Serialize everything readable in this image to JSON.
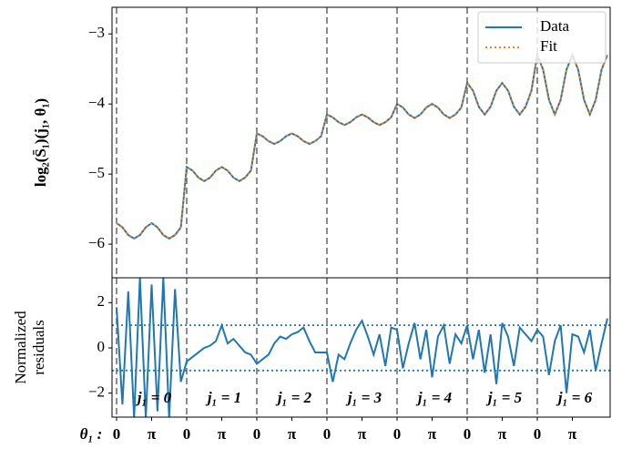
{
  "chart_data": [
    {
      "type": "line",
      "ylabel": "log₂(S̄₁)(j₁, θ₁)",
      "x": [
        0,
        1,
        2,
        3,
        4,
        5,
        6,
        7,
        8,
        9,
        10,
        11,
        12,
        13,
        14,
        15,
        16,
        17,
        18,
        19,
        20,
        21,
        22,
        23,
        24,
        25,
        26,
        27,
        28,
        29,
        30,
        31,
        32,
        33,
        34,
        35,
        36,
        37,
        38,
        39,
        40,
        41,
        42,
        43,
        44,
        45,
        46,
        47,
        48,
        49,
        50,
        51,
        52,
        53,
        54,
        55,
        56,
        57,
        58,
        59,
        60,
        61,
        62,
        63,
        64,
        65,
        66,
        67,
        68,
        69,
        70,
        71,
        72,
        73,
        74,
        75,
        76,
        77,
        78,
        79,
        80,
        81,
        82,
        83,
        84
      ],
      "series": [
        {
          "name": "Data",
          "color": "#1f77b4",
          "style": "solid",
          "values": [
            -5.7,
            -5.76,
            -5.87,
            -5.92,
            -5.87,
            -5.76,
            -5.7,
            -5.76,
            -5.87,
            -5.92,
            -5.87,
            -5.76,
            -4.9,
            -4.95,
            -5.05,
            -5.1,
            -5.05,
            -4.95,
            -4.9,
            -4.95,
            -5.05,
            -5.1,
            -5.05,
            -4.95,
            -4.42,
            -4.46,
            -4.53,
            -4.57,
            -4.53,
            -4.46,
            -4.42,
            -4.46,
            -4.53,
            -4.57,
            -4.53,
            -4.46,
            -4.15,
            -4.19,
            -4.26,
            -4.3,
            -4.26,
            -4.19,
            -4.15,
            -4.19,
            -4.26,
            -4.3,
            -4.26,
            -4.19,
            -4.0,
            -4.05,
            -4.15,
            -4.2,
            -4.15,
            -4.05,
            -4.0,
            -4.05,
            -4.15,
            -4.2,
            -4.15,
            -4.05,
            -3.7,
            -3.81,
            -4.04,
            -4.15,
            -4.04,
            -3.81,
            -3.7,
            -3.81,
            -4.04,
            -4.15,
            -4.04,
            -3.81,
            -3.3,
            -3.51,
            -3.94,
            -4.15,
            -3.94,
            -3.51,
            -3.3,
            -3.51,
            -3.94,
            -4.15,
            -3.94,
            -3.51,
            -3.3
          ]
        },
        {
          "name": "Fit",
          "color": "#ff7f0e",
          "style": "dotted",
          "values": [
            -5.7,
            -5.76,
            -5.87,
            -5.92,
            -5.87,
            -5.76,
            -5.7,
            -5.76,
            -5.87,
            -5.92,
            -5.87,
            -5.76,
            -4.9,
            -4.95,
            -5.05,
            -5.1,
            -5.05,
            -4.95,
            -4.9,
            -4.95,
            -5.05,
            -5.1,
            -5.05,
            -4.95,
            -4.42,
            -4.46,
            -4.53,
            -4.57,
            -4.53,
            -4.46,
            -4.42,
            -4.46,
            -4.53,
            -4.57,
            -4.53,
            -4.46,
            -4.15,
            -4.19,
            -4.26,
            -4.3,
            -4.26,
            -4.19,
            -4.15,
            -4.19,
            -4.26,
            -4.3,
            -4.26,
            -4.19,
            -4.0,
            -4.05,
            -4.15,
            -4.2,
            -4.15,
            -4.05,
            -4.0,
            -4.05,
            -4.15,
            -4.2,
            -4.15,
            -4.05,
            -3.7,
            -3.81,
            -4.04,
            -4.15,
            -4.04,
            -3.81,
            -3.7,
            -3.81,
            -4.04,
            -4.15,
            -4.04,
            -3.81,
            -3.3,
            -3.51,
            -3.94,
            -4.15,
            -3.94,
            -3.51,
            -3.3,
            -3.51,
            -3.94,
            -4.15,
            -3.94,
            -3.51,
            -3.3
          ]
        }
      ],
      "xlim": [
        -0.78,
        84.47
      ],
      "ylim": [
        -6.48,
        -2.62
      ],
      "yticks": [
        {
          "value": -6,
          "label": "−6"
        },
        {
          "value": -5,
          "label": "−5"
        },
        {
          "value": -4,
          "label": "−4"
        },
        {
          "value": -3,
          "label": "−3"
        }
      ],
      "vlines": [
        0,
        12,
        24,
        36,
        48,
        60,
        72
      ],
      "legend": "upper right"
    },
    {
      "type": "line",
      "ylabel": [
        "Normalized",
        "residuals"
      ],
      "xlabel": "θ₁ :",
      "x": [
        0,
        1,
        2,
        3,
        4,
        5,
        6,
        7,
        8,
        9,
        10,
        11,
        12,
        13,
        14,
        15,
        16,
        17,
        18,
        19,
        20,
        21,
        22,
        23,
        24,
        25,
        26,
        27,
        28,
        29,
        30,
        31,
        32,
        33,
        34,
        35,
        36,
        37,
        38,
        39,
        40,
        41,
        42,
        43,
        44,
        45,
        46,
        47,
        48,
        49,
        50,
        51,
        52,
        53,
        54,
        55,
        56,
        57,
        58,
        59,
        60,
        61,
        62,
        63,
        64,
        65,
        66,
        67,
        68,
        69,
        70,
        71,
        72,
        73,
        74,
        75,
        76,
        77,
        78,
        79,
        80,
        81,
        82,
        83,
        84
      ],
      "series": [
        {
          "color": "#1f77b4",
          "values": [
            1.8,
            -2.5,
            2.5,
            -3.1,
            3.1,
            -3.1,
            2.8,
            -2.8,
            3.1,
            -3.1,
            2.6,
            -1.5,
            -0.6,
            -0.4,
            -0.2,
            0,
            0.1,
            0.3,
            1.0,
            0.2,
            0.4,
            0.1,
            -0.2,
            -0.3,
            -0.7,
            -0.5,
            -0.3,
            0.2,
            0.5,
            0.4,
            0.6,
            0.7,
            0.9,
            0.3,
            -0.2,
            -0.2,
            -0.2,
            -1.5,
            -0.3,
            -0.5,
            0.2,
            0.8,
            1.2,
            0.5,
            -0.3,
            0.6,
            -0.8,
            0.9,
            0.8,
            -0.9,
            0.2,
            1.1,
            -0.5,
            0.8,
            -1.3,
            0.5,
            1.0,
            -0.7,
            0.6,
            0.2,
            1.0,
            -0.5,
            0.8,
            -1.1,
            0.6,
            -1.6,
            1.1,
            0.5,
            -0.8,
            0.9,
            0.6,
            0.3,
            0.8,
            0.5,
            -1.2,
            0.3,
            1.0,
            -2.0,
            0.6,
            0.5,
            -0.2,
            0.8,
            -1.0,
            0.2,
            1.3
          ]
        }
      ],
      "xlim": [
        -0.78,
        84.47
      ],
      "ylim": [
        -3.06,
        3.1
      ],
      "yticks": [
        {
          "value": -2,
          "label": "−2"
        },
        0,
        2
      ],
      "xticks": [
        {
          "value": 0,
          "label": "0"
        },
        {
          "value": 6,
          "label": "π"
        },
        {
          "value": 12,
          "label": "0"
        },
        {
          "value": 18,
          "label": "π"
        },
        {
          "value": 24,
          "label": "0"
        },
        {
          "value": 30,
          "label": "π"
        },
        {
          "value": 36,
          "label": "0"
        },
        {
          "value": 42,
          "label": "π"
        },
        {
          "value": 48,
          "label": "0"
        },
        {
          "value": 54,
          "label": "π"
        },
        {
          "value": 60,
          "label": "0"
        },
        {
          "value": 66,
          "label": "π"
        },
        {
          "value": 72,
          "label": "0"
        },
        {
          "value": 78,
          "label": "π"
        }
      ],
      "vlines": [
        0,
        12,
        24,
        36,
        48,
        60,
        72
      ],
      "hlines": [
        -1,
        1
      ],
      "annotations": [
        "j₁ = 0",
        "j₁ = 1",
        "j₁ = 2",
        "j₁ = 3",
        "j₁ = 4",
        "j₁ = 5",
        "j₁ = 6"
      ]
    }
  ]
}
